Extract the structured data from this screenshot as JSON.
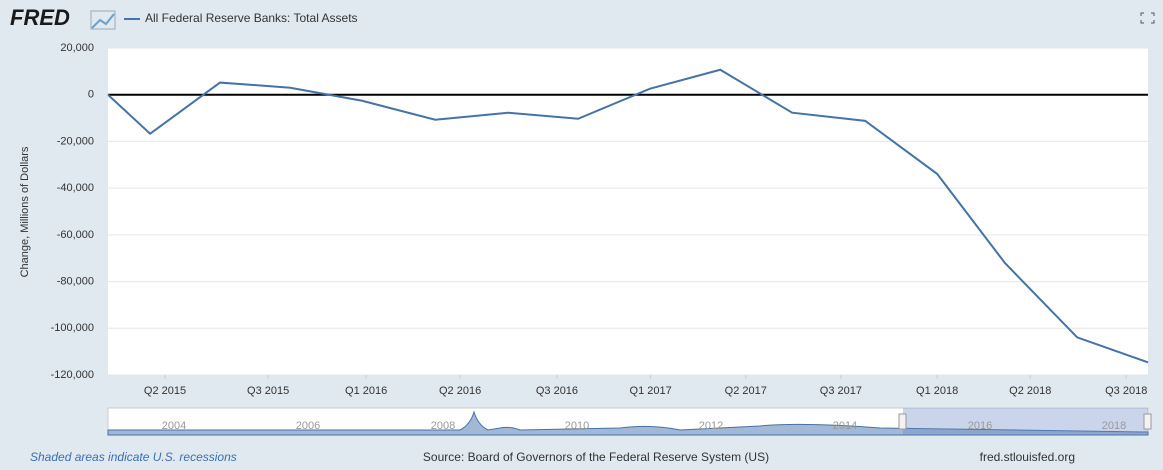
{
  "logo": "FRED",
  "chart_data": {
    "type": "line",
    "y_label": "Change, Millions of Dollars",
    "x": [
      2015.106,
      2015.253,
      2015.497,
      2015.742,
      2015.993,
      2016.248,
      2016.503,
      2016.747,
      2016.998,
      2017.243,
      2017.494,
      2017.749,
      2018.0,
      2018.237,
      2018.489,
      2018.736
    ],
    "series": [
      {
        "name": "All Federal Reserve Banks: Total Assets",
        "color": "#4572a7",
        "values": [
          0,
          -16700,
          5200,
          3000,
          -2600,
          -10700,
          -7700,
          -10300,
          2600,
          10700,
          -7700,
          -11200,
          -33900,
          -72100,
          -103900,
          -114600
        ]
      }
    ],
    "xlim": [
      2015.106,
      2018.736
    ],
    "xticks": [
      {
        "value": 2015.305,
        "label": "Q2 2015"
      },
      {
        "value": 2015.665,
        "label": "Q3 2015"
      },
      {
        "value": 2016.007,
        "label": "Q1 2016"
      },
      {
        "value": 2016.335,
        "label": "Q2 2016"
      },
      {
        "value": 2016.673,
        "label": "Q3 2016"
      },
      {
        "value": 2017.0,
        "label": "Q1 2017"
      },
      {
        "value": 2017.332,
        "label": "Q2 2017"
      },
      {
        "value": 2017.664,
        "label": "Q3 2017"
      },
      {
        "value": 2018.0,
        "label": "Q1 2018"
      },
      {
        "value": 2018.325,
        "label": "Q2 2018"
      },
      {
        "value": 2018.66,
        "label": "Q3 2018"
      }
    ],
    "ylim": [
      -120000,
      20000
    ],
    "yticks": [
      {
        "value": -120000,
        "label": "-120,000"
      },
      {
        "value": -100000,
        "label": "-100,000"
      },
      {
        "value": -80000,
        "label": "-80,000"
      },
      {
        "value": -60000,
        "label": "-60,000"
      },
      {
        "value": -40000,
        "label": "-40,000"
      },
      {
        "value": -20000,
        "label": "-20,000"
      },
      0,
      {
        "value": 20000,
        "label": "20,000"
      }
    ],
    "grid": true
  },
  "navigator": {
    "labels": [
      "2004",
      "2006",
      "2008",
      "2010",
      "2012",
      "2014",
      "2016",
      "2018"
    ]
  },
  "footer": {
    "recessions": "Shaded areas indicate U.S. recessions",
    "source": "Source: Board of Governors of the Federal Reserve System (US)",
    "site": "fred.stlouisfed.org"
  }
}
